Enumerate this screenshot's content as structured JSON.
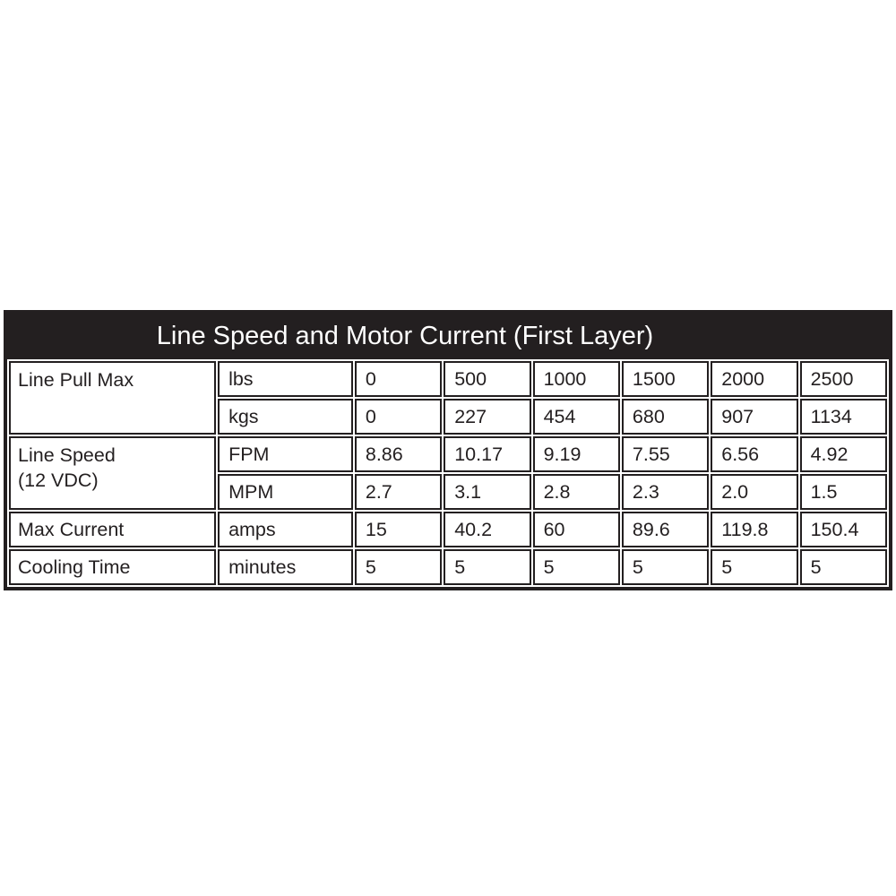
{
  "colors": {
    "table_black": "#231f20",
    "cell_background": "#ffffff",
    "title_text": "#ffffff",
    "body_text": "#231f20",
    "page_background": "#ffffff"
  },
  "table": {
    "title": "Line Speed and Motor Current (First Layer)",
    "groups": [
      {
        "label": "Line Pull Max",
        "rows": [
          {
            "unit": "lbs",
            "cells": [
              "0",
              "500",
              "1000",
              "1500",
              "2000",
              "2500"
            ]
          },
          {
            "unit": "kgs",
            "cells": [
              "0",
              "227",
              "454",
              "680",
              "907",
              "1134"
            ]
          }
        ]
      },
      {
        "label": "Line Speed\n(12 VDC)",
        "rows": [
          {
            "unit": "FPM",
            "cells": [
              "8.86",
              "10.17",
              "9.19",
              "7.55",
              "6.56",
              "4.92"
            ]
          },
          {
            "unit": "MPM",
            "cells": [
              "2.7",
              "3.1",
              "2.8",
              "2.3",
              "2.0",
              "1.5"
            ]
          }
        ]
      },
      {
        "label": "Max Current",
        "rows": [
          {
            "unit": "amps",
            "cells": [
              "15",
              "40.2",
              "60",
              "89.6",
              "119.8",
              "150.4"
            ]
          }
        ]
      },
      {
        "label": "Cooling Time",
        "rows": [
          {
            "unit": "minutes",
            "cells": [
              "5",
              "5",
              "5",
              "5",
              "5",
              "5"
            ]
          }
        ]
      }
    ]
  },
  "chart_data": {
    "type": "table",
    "title": "Line Speed and Motor Current (First Layer)",
    "line_pull_lbs": [
      0,
      500,
      1000,
      1500,
      2000,
      2500
    ],
    "rows": [
      {
        "parameter": "Line Pull Max",
        "unit": "lbs",
        "values": [
          0,
          500,
          1000,
          1500,
          2000,
          2500
        ]
      },
      {
        "parameter": "Line Pull Max",
        "unit": "kgs",
        "values": [
          0,
          227,
          454,
          680,
          907,
          1134
        ]
      },
      {
        "parameter": "Line Speed (12 VDC)",
        "unit": "FPM",
        "values": [
          8.86,
          10.17,
          9.19,
          7.55,
          6.56,
          4.92
        ]
      },
      {
        "parameter": "Line Speed (12 VDC)",
        "unit": "MPM",
        "values": [
          2.7,
          3.1,
          2.8,
          2.3,
          2.0,
          1.5
        ]
      },
      {
        "parameter": "Max Current",
        "unit": "amps",
        "values": [
          15,
          40.2,
          60,
          89.6,
          119.8,
          150.4
        ]
      },
      {
        "parameter": "Cooling Time",
        "unit": "minutes",
        "values": [
          5,
          5,
          5,
          5,
          5,
          5
        ]
      }
    ],
    "layout": {
      "header_style": "black-bar-title",
      "grid": "black-double-rule",
      "column_count": 8
    }
  }
}
